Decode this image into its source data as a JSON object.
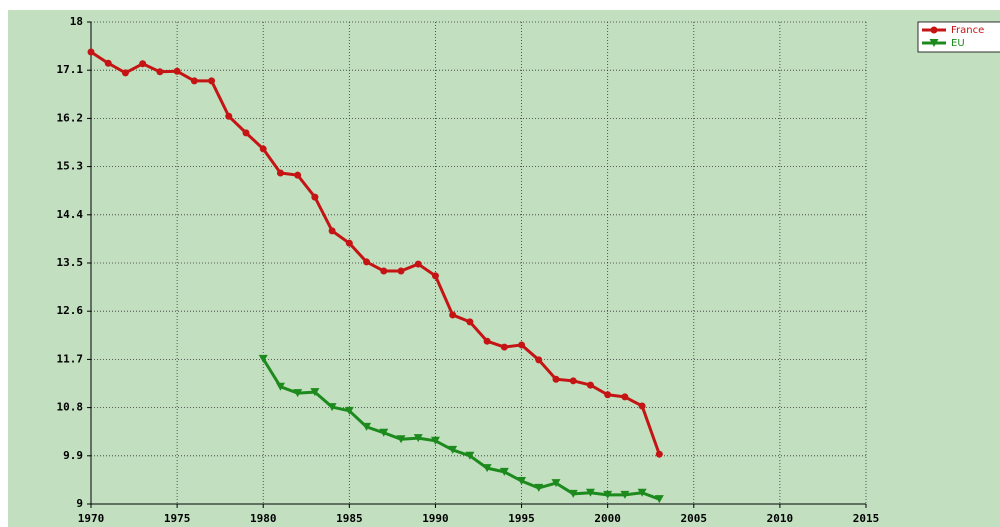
{
  "chart_data": {
    "type": "line",
    "x": [
      1970,
      1971,
      1972,
      1973,
      1974,
      1975,
      1976,
      1977,
      1978,
      1979,
      1980,
      1981,
      1982,
      1983,
      1984,
      1985,
      1986,
      1987,
      1988,
      1989,
      1990,
      1991,
      1992,
      1993,
      1994,
      1995,
      1996,
      1997,
      1998,
      1999,
      2000,
      2001,
      2002,
      2003
    ],
    "series": [
      {
        "name": "France",
        "color": "#c41414",
        "marker": "circle",
        "values": [
          17.44,
          17.23,
          17.05,
          17.22,
          17.07,
          17.08,
          16.9,
          16.9,
          16.24,
          15.93,
          15.63,
          15.18,
          15.14,
          14.73,
          14.1,
          13.87,
          13.52,
          13.35,
          13.35,
          13.48,
          13.26,
          12.53,
          12.4,
          12.04,
          11.93,
          11.97,
          11.69,
          11.33,
          11.3,
          11.22,
          11.04,
          11.0,
          10.83,
          9.93
        ]
      },
      {
        "name": "EU",
        "color": "#1c8a1c",
        "marker": "triangle-down",
        "values": [
          null,
          null,
          null,
          null,
          null,
          null,
          null,
          null,
          null,
          null,
          11.71,
          11.19,
          11.07,
          11.09,
          10.81,
          10.74,
          10.44,
          10.33,
          10.21,
          10.23,
          10.18,
          10.01,
          9.9,
          9.67,
          9.6,
          9.43,
          9.3,
          9.39,
          9.19,
          9.21,
          9.17,
          9.17,
          9.21,
          9.09
        ]
      }
    ],
    "xlim": [
      1970,
      2015
    ],
    "xticks": [
      1970,
      1975,
      1980,
      1985,
      1990,
      1995,
      2000,
      2005,
      2010,
      2015
    ],
    "ylim": [
      9,
      18
    ],
    "yticks": [
      9,
      9.9,
      10.8,
      11.7,
      12.6,
      13.5,
      14.4,
      15.3,
      16.2,
      17.1,
      18
    ],
    "grid": true,
    "legend": "top-right"
  }
}
